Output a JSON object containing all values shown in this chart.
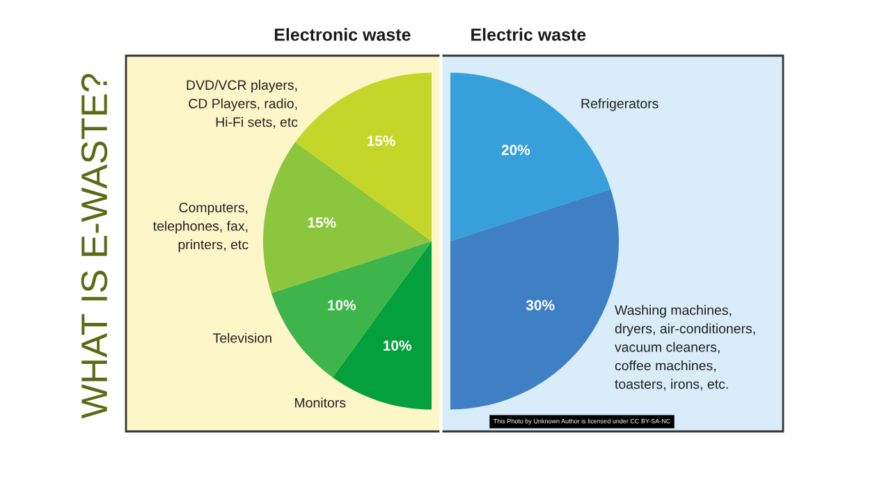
{
  "chart_data": {
    "type": "pie",
    "title": "WHAT IS E-WASTE?",
    "categories": [
      "Refrigerators",
      "Washing machines,\ndryers, air-conditioners,\nvacuum cleaners,\ncoffee machines,\ntoasters, irons, etc.",
      "Monitors",
      "Television",
      "Computers,\ntelephones, fax,\nprinters, etc",
      "DVD/VCR players,\nCD Players, radio,\nHi-Fi sets, etc"
    ],
    "values": [
      20,
      30,
      10,
      10,
      15,
      15
    ],
    "colors": [
      "#379fd9",
      "#3f80c4",
      "#05a03e",
      "#3db54a",
      "#8cc63e",
      "#c5d62a"
    ],
    "value_labels": [
      "20%",
      "30%",
      "10%",
      "10%",
      "15%",
      "15%"
    ],
    "annotations": [
      "Electronic waste",
      "Electric waste",
      "This Photo by Unknown Author is licensed under CC BY-SA-NC"
    ]
  }
}
